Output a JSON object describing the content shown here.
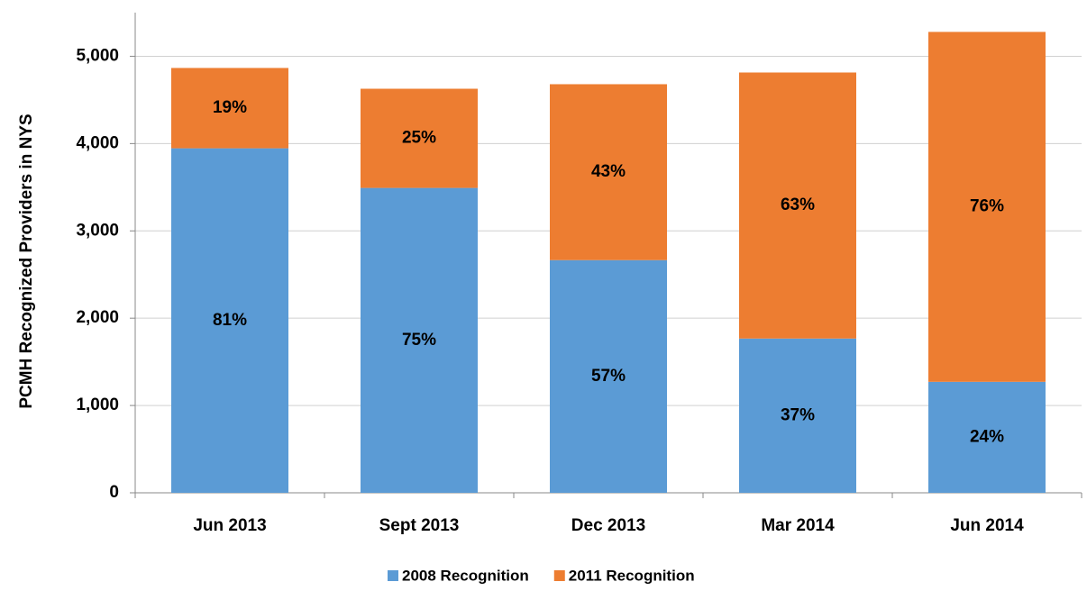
{
  "chart_data": {
    "type": "stacked_bar",
    "y_label": "PCMH Recognized Providers in NYS",
    "categories": [
      "Jun 2013",
      "Sept 2013",
      "Dec 2013",
      "Mar 2014",
      "Jun 2014"
    ],
    "series": [
      {
        "name": "2008 Recognition",
        "color": "#5b9bd5",
        "values": [
          3946,
          3492,
          2665,
          1767,
          1271
        ],
        "value_labels": [
          "81%",
          "75%",
          "57%",
          "37%",
          "24%"
        ]
      },
      {
        "name": "2011 Recognition",
        "color": "#ed7d31",
        "values": [
          920,
          1136,
          2015,
          3047,
          4008
        ],
        "value_labels": [
          "19%",
          "25%",
          "43%",
          "63%",
          "76%"
        ]
      }
    ],
    "ylim": [
      0,
      5500
    ],
    "yticks": [
      0,
      {
        "value": 1000,
        "label": "1,000"
      },
      {
        "value": 2000,
        "label": "2,000"
      },
      {
        "value": 3000,
        "label": "3,000"
      },
      {
        "value": 4000,
        "label": "4,000"
      },
      {
        "value": 5000,
        "label": "5,000"
      }
    ],
    "grid": true,
    "legend": "bottom"
  }
}
